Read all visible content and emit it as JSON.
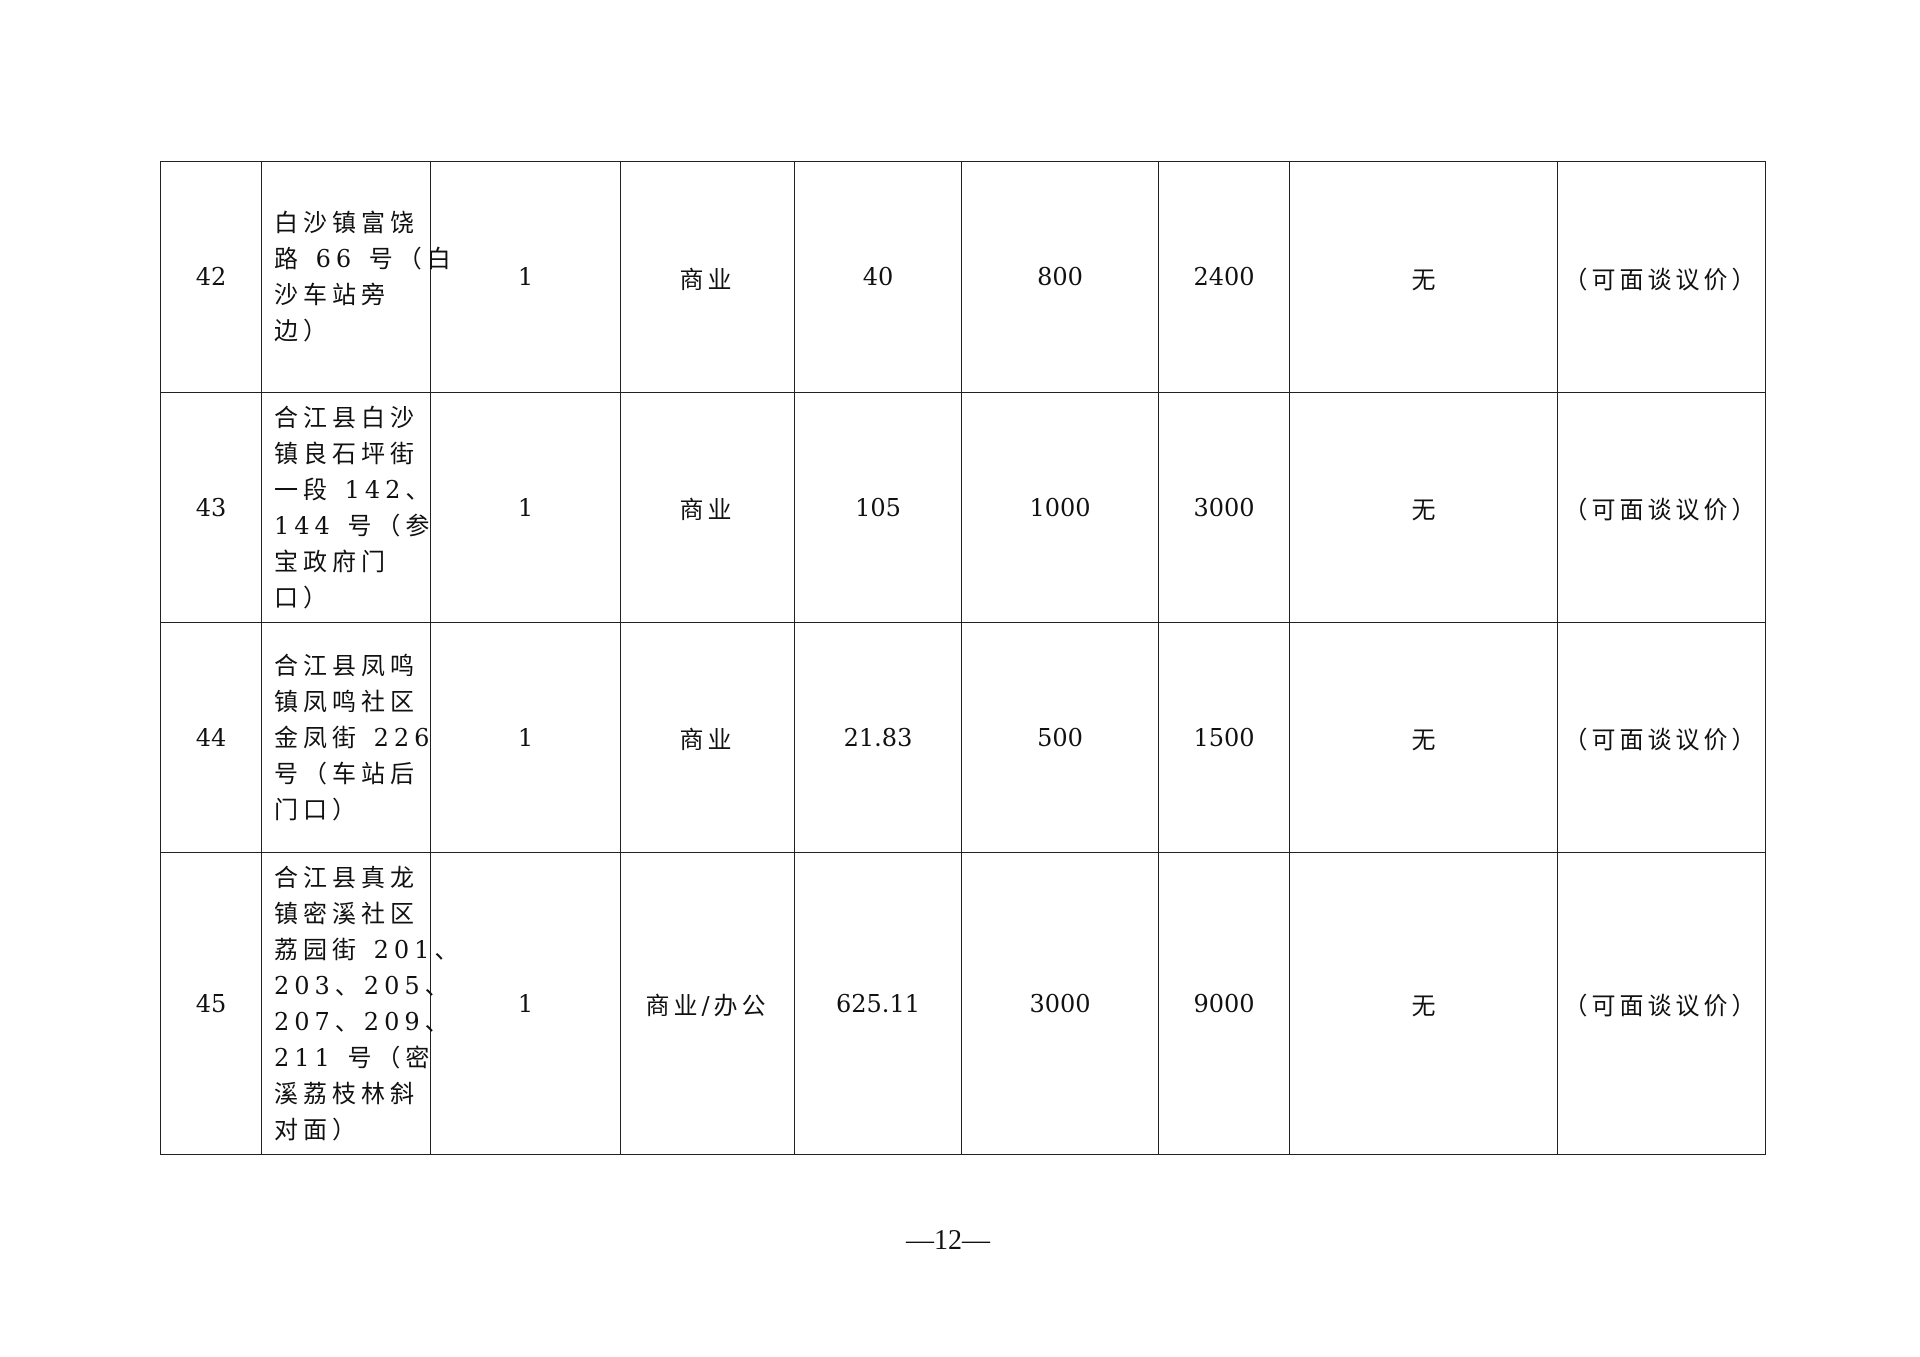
{
  "rows": [
    {
      "no": "42",
      "address_lines": [
        "白沙镇富饶",
        "路 66 号（白",
        "沙车站旁",
        "边）"
      ],
      "count": "1",
      "use": "商业",
      "area": "40",
      "rent": "800",
      "deposit": "2400",
      "other": "无",
      "note": "（可面谈议价）"
    },
    {
      "no": "43",
      "address_lines": [
        "合江县白沙",
        "镇良石坪街",
        "一段 142、",
        "144 号（参",
        "宝政府门",
        "口）"
      ],
      "count": "1",
      "use": "商业",
      "area": "105",
      "rent": "1000",
      "deposit": "3000",
      "other": "无",
      "note": "（可面谈议价）"
    },
    {
      "no": "44",
      "address_lines": [
        "合江县凤鸣",
        "镇凤鸣社区",
        "金凤街 226",
        "号（车站后",
        "门口）"
      ],
      "count": "1",
      "use": "商业",
      "area": "21.83",
      "rent": "500",
      "deposit": "1500",
      "other": "无",
      "note": "（可面谈议价）"
    },
    {
      "no": "45",
      "address_lines": [
        "合江县真龙",
        "镇密溪社区",
        "荔园街 201、",
        "203、205、",
        "207、209、",
        "211 号（密",
        "溪荔枝林斜",
        "对面）"
      ],
      "count": "1",
      "use": "商业/办公",
      "area": "625.11",
      "rent": "3000",
      "deposit": "9000",
      "other": "无",
      "note": "（可面谈议价）"
    }
  ],
  "page_number": "—12—"
}
